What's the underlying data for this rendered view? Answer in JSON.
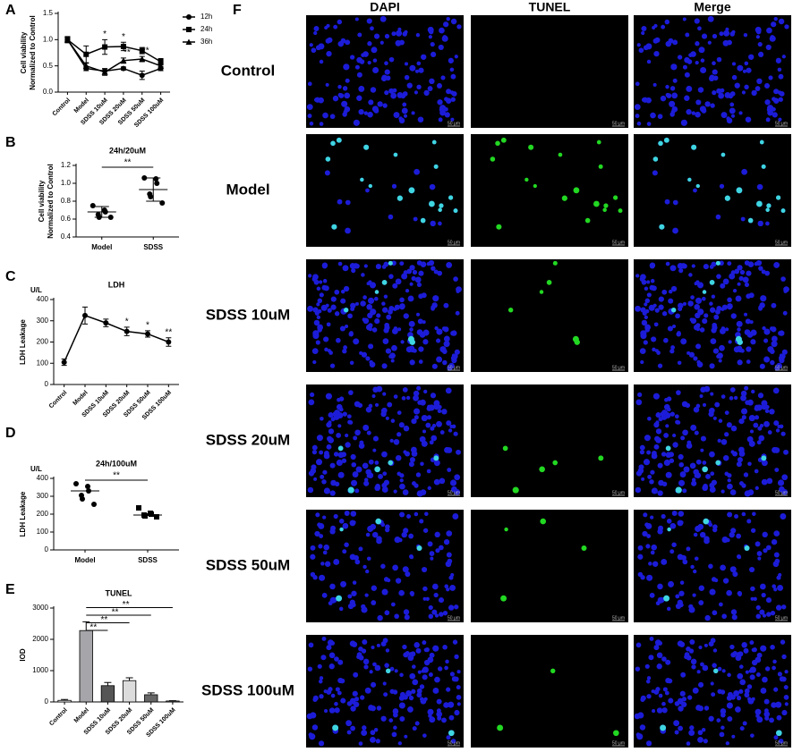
{
  "chart_data": [
    {
      "type": "line",
      "label": "A",
      "ylabel": [
        "Cell viability",
        "Normalized to Control"
      ],
      "categories": [
        "Control",
        "Model",
        "SDSS 10uM",
        "SDSS 20uM",
        "SDSS 50uM",
        "SDSS 100uM"
      ],
      "ylim": [
        0,
        1.5
      ],
      "yticks": [
        {
          "value": 0,
          "label": "0.0"
        },
        {
          "value": 0.5,
          "label": "0.5"
        },
        {
          "value": 1,
          "label": "1.0"
        },
        {
          "value": 1.5,
          "label": "1.5"
        }
      ],
      "legend": "upper right",
      "series": [
        {
          "name": "12h",
          "color": "#000000",
          "marker": "circle",
          "values": [
            1.0,
            0.45,
            0.4,
            0.45,
            0.32,
            0.45
          ],
          "errors": [
            0.05,
            0.04,
            0.05,
            0.03,
            0.08,
            0.04
          ],
          "significance": [
            null,
            null,
            null,
            null,
            null,
            null
          ]
        },
        {
          "name": "24h",
          "color": "#000000",
          "marker": "square",
          "values": [
            1.0,
            0.72,
            0.86,
            0.87,
            0.79,
            0.58
          ],
          "errors": [
            0.06,
            0.16,
            0.14,
            0.08,
            0.06,
            0.06
          ],
          "significance": [
            null,
            null,
            "*",
            "*",
            null,
            null
          ]
        },
        {
          "name": "36h",
          "color": "#000000",
          "marker": "triangle",
          "values": [
            1.0,
            0.5,
            0.38,
            0.6,
            0.63,
            0.5
          ],
          "errors": [
            0.05,
            0.05,
            0.06,
            0.05,
            0.05,
            0.04
          ],
          "significance": [
            null,
            null,
            null,
            "**",
            "**",
            null
          ]
        }
      ]
    },
    {
      "type": "dot",
      "label": "B",
      "title": "24h/20uM",
      "ylabel": [
        "Cell viability",
        "Normalized to Control"
      ],
      "categories": [
        "Model",
        "SDSS"
      ],
      "ylim": [
        0.4,
        1.2
      ],
      "yticks": [
        0.4,
        0.6,
        0.8,
        {
          "value": 1,
          "label": "1.0"
        },
        1.2
      ],
      "groups": [
        {
          "values": [
            0.75,
            0.7,
            0.68,
            0.65,
            0.62,
            0.62
          ],
          "mean": 0.68,
          "sd": 0.06
        },
        {
          "values": [
            1.06,
            1.05,
            1.0,
            0.88,
            0.85,
            0.78
          ],
          "mean": 0.93,
          "sd": 0.13
        }
      ],
      "significance": "**"
    },
    {
      "type": "line",
      "label": "C",
      "title": "LDH",
      "unit": "U/L",
      "ylabel": "LDH Leakage",
      "categories": [
        "Control",
        "Model",
        "SDSS 10uM",
        "SDSS 20uM",
        "SDSS 50uM",
        "SDSS 100uM"
      ],
      "ylim": [
        0,
        400
      ],
      "yticks": [
        0,
        100,
        200,
        300,
        400
      ],
      "series": [
        {
          "color": "#000000",
          "marker": "circle",
          "values": [
            105,
            325,
            290,
            250,
            238,
            200
          ],
          "errors": [
            15,
            40,
            18,
            20,
            15,
            20
          ],
          "significance": [
            null,
            null,
            null,
            "*",
            "*",
            "**"
          ]
        }
      ]
    },
    {
      "type": "dot",
      "label": "D",
      "title": "24h/100uM",
      "unit": "U/L",
      "ylabel": "LDH Leakage",
      "categories": [
        "Model",
        "SDSS"
      ],
      "ylim": [
        0,
        400
      ],
      "yticks": [
        0,
        100,
        200,
        300,
        400
      ],
      "groups": [
        {
          "values": [
            370,
            355,
            330,
            305,
            285,
            255
          ],
          "mean": 330
        },
        {
          "values": [
            235,
            205,
            200,
            195,
            190,
            185
          ],
          "mean": 195
        }
      ],
      "significance": "**"
    },
    {
      "type": "bar",
      "label": "E",
      "title": "TUNEL",
      "ylabel": "IOD",
      "categories": [
        "Control",
        "Model",
        "SDSS 10uM",
        "SDSS 20uM",
        "SDSS 50uM",
        "SDSS 100uM"
      ],
      "ylim": [
        0,
        3000
      ],
      "yticks": [
        0,
        1000,
        2000,
        3000
      ],
      "values": [
        50,
        2280,
        520,
        680,
        230,
        30
      ],
      "errors": [
        30,
        280,
        100,
        90,
        60,
        10
      ],
      "colors": [
        "#ffffff",
        "#a6a6aa",
        "#555555",
        "#dcdcdc",
        "#666666",
        "#999999"
      ],
      "comparisons": [
        {
          "from": 1,
          "to": 2,
          "text": "**"
        },
        {
          "from": 1,
          "to": 3,
          "text": "**"
        },
        {
          "from": 1,
          "to": 4,
          "text": "**"
        },
        {
          "from": 1,
          "to": 5,
          "text": "**"
        }
      ]
    }
  ],
  "image_grid": {
    "label": "F",
    "columns": [
      {
        "name": "DAPI",
        "color": "#2323e6"
      },
      {
        "name": "TUNEL",
        "color": "#1fc41f"
      },
      {
        "name": "Merge",
        "color": "#19a8b4"
      }
    ],
    "rows": [
      "Control",
      "Model",
      "SDSS 10uM",
      "SDSS 20uM",
      "SDSS 50uM",
      "SDSS 100uM"
    ],
    "scale_bar": "50 μm"
  }
}
